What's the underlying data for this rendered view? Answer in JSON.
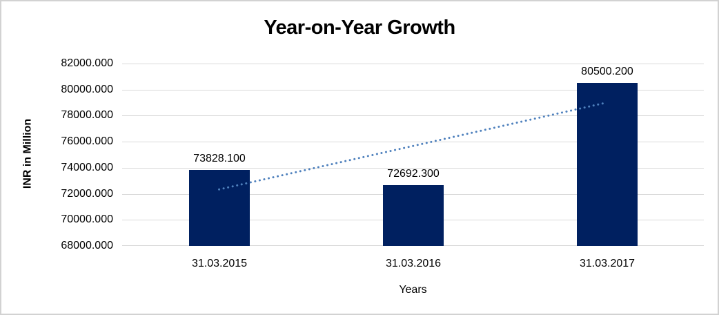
{
  "chart_data": {
    "type": "bar",
    "title": "Year-on-Year Growth",
    "xlabel": "Years",
    "ylabel": "INR in Million",
    "categories": [
      "31.03.2015",
      "31.03.2016",
      "31.03.2017"
    ],
    "values": [
      73828.1,
      72692.3,
      80500.2
    ],
    "value_labels": [
      "73828.100",
      "72692.300",
      "80500.200"
    ],
    "ylim": [
      68000,
      82000
    ],
    "ytick_step": 2000,
    "ytick_labels": [
      "68000.000",
      "70000.000",
      "72000.000",
      "74000.000",
      "76000.000",
      "78000.000",
      "80000.000",
      "82000.000"
    ],
    "grid": true,
    "legend": false,
    "trendline": {
      "type": "linear",
      "style": "dotted",
      "endpoint_values": [
        72337.5,
        79009.6
      ]
    },
    "colors": {
      "bar": "#002060",
      "trend": "#4f81bd",
      "gridline": "#d9d9d9",
      "text": "#000000",
      "background": "#ffffff",
      "frame_border": "#d2d2d2"
    }
  }
}
